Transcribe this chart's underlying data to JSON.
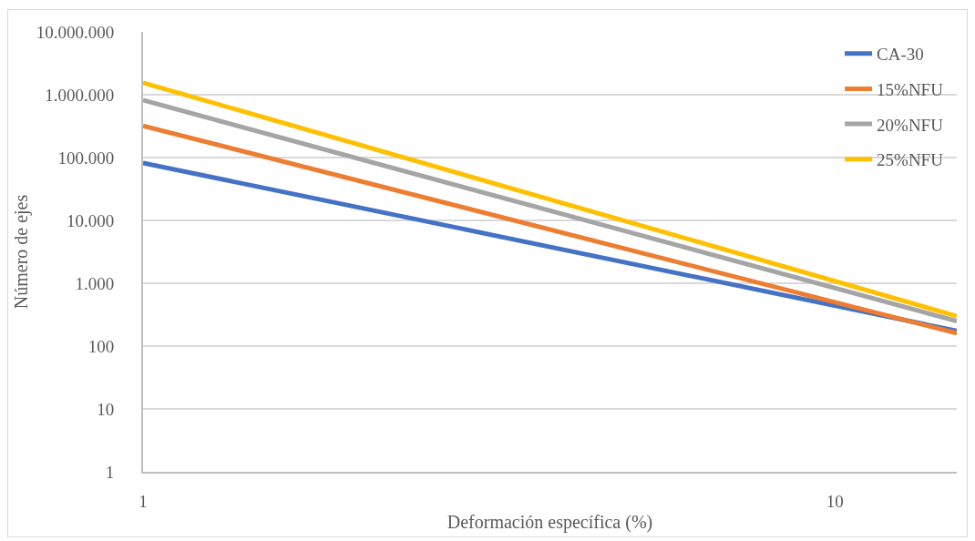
{
  "chart_data": {
    "type": "line",
    "xlabel": "Deformación específica (%)",
    "ylabel": "Número de ejes",
    "x": [
      1,
      15
    ],
    "series": [
      {
        "name": "CA-30",
        "color": "#4472c4",
        "values": [
          82000,
          175
        ]
      },
      {
        "name": "15%NFU",
        "color": "#ed7d31",
        "values": [
          320000,
          160
        ]
      },
      {
        "name": "20%NFU",
        "color": "#a5a5a5",
        "values": [
          820000,
          250
        ]
      },
      {
        "name": "25%NFU",
        "color": "#ffc000",
        "values": [
          1550000,
          300
        ]
      }
    ],
    "xlim": [
      1,
      15
    ],
    "xticks": [
      1,
      10
    ],
    "ylim": [
      1,
      10000000
    ],
    "yticks": [
      1,
      10,
      100,
      {
        "value": 1000,
        "label": "1.000"
      },
      {
        "value": 10000,
        "label": "10.000"
      },
      {
        "value": 100000,
        "label": "100.000"
      },
      {
        "value": 1000000,
        "label": "1.000.000"
      },
      {
        "value": 10000000,
        "label": "10.000.000"
      }
    ],
    "log": "xy",
    "grid": "y",
    "legend": "top right",
    "marker": "none",
    "line_style": "solid"
  }
}
